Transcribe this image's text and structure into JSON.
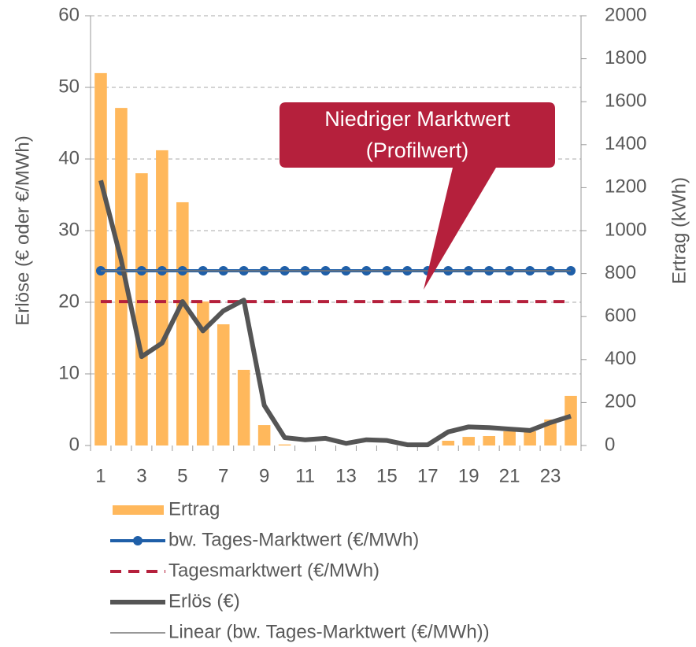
{
  "chart_data": {
    "type": "combo",
    "y_label": "Erlöse (€ oder €/MWh)",
    "y2_label": "Ertrag (kWh)",
    "annotation": [
      "Niedriger Marktwert",
      "(Profilwert)"
    ],
    "categories": [
      "1",
      null,
      "3",
      null,
      "5",
      null,
      "7",
      null,
      "9",
      null,
      "11",
      null,
      "13",
      null,
      "15",
      null,
      "17",
      null,
      "19",
      null,
      "21",
      null,
      "23",
      null
    ],
    "ylim": [
      0,
      60
    ],
    "yticks": [
      0,
      10,
      20,
      30,
      40,
      50,
      60
    ],
    "y2lim": [
      0,
      2000
    ],
    "y2ticks": [
      0,
      200,
      400,
      600,
      800,
      1000,
      1200,
      1400,
      1600,
      1800,
      2000
    ],
    "grid": true,
    "series": [
      {
        "name": "Ertrag",
        "type": "bar",
        "axis": "y2",
        "color": "#ffb85c",
        "values": [
          1733,
          1571,
          1267,
          1374,
          1132,
          670,
          564,
          352,
          95,
          5,
          0,
          0,
          0,
          0,
          0,
          0,
          0,
          22,
          40,
          44,
          66,
          66,
          121,
          231
        ]
      },
      {
        "name": "bw. Tages-Marktwert (€/MWh)",
        "type": "line",
        "color": "#1f5fa8",
        "markers": true,
        "width": 4,
        "values": [
          24.4,
          24.4,
          24.4,
          24.4,
          24.4,
          24.4,
          24.4,
          24.4,
          24.4,
          24.4,
          24.4,
          24.4,
          24.4,
          24.4,
          24.4,
          24.4,
          24.4,
          24.4,
          24.4,
          24.4,
          24.4,
          24.4,
          24.4,
          24.4
        ]
      },
      {
        "name": "Tagesmarktwert (€/MWh)",
        "type": "line",
        "color": "#b5203c",
        "dashed": true,
        "width": 4,
        "values": [
          20.1,
          20.1,
          20.1,
          20.1,
          20.1,
          20.1,
          20.1,
          20.1,
          20.1,
          20.1,
          20.1,
          20.1,
          20.1,
          20.1,
          20.1,
          20.1,
          20.1,
          20.1,
          20.1,
          20.1,
          20.1,
          20.1,
          20.1,
          20.1
        ]
      },
      {
        "name": "Erlös (€)",
        "type": "line",
        "color": "#555555",
        "width": 6,
        "values": [
          37.0,
          25.9,
          12.4,
          14.3,
          20.1,
          16.0,
          18.8,
          20.3,
          5.6,
          1.1,
          0.8,
          1.0,
          0.3,
          0.8,
          0.7,
          0.1,
          0.1,
          1.9,
          2.6,
          2.5,
          2.3,
          2.1,
          3.2,
          4.1
        ]
      },
      {
        "name": "Linear (bw. Tages-Marktwert (€/MWh))",
        "type": "line",
        "color": "#777777",
        "width": 1.5,
        "values": [
          24.4,
          24.4,
          24.4,
          24.4,
          24.4,
          24.4,
          24.4,
          24.4,
          24.4,
          24.4,
          24.4,
          24.4,
          24.4,
          24.4,
          24.4,
          24.4,
          24.4,
          24.4,
          24.4,
          24.4,
          24.4,
          24.4,
          24.4,
          24.4
        ]
      }
    ]
  }
}
